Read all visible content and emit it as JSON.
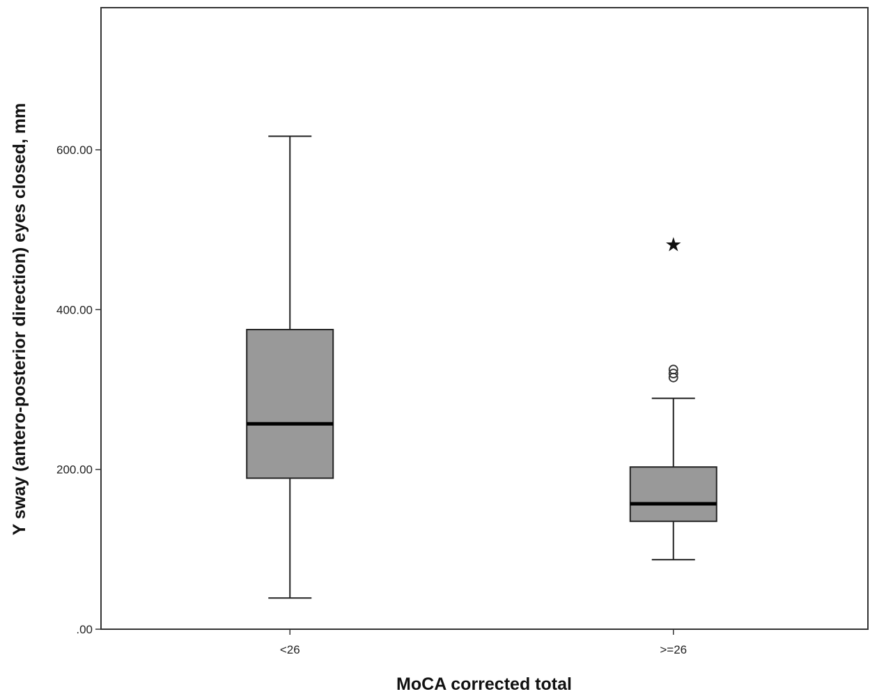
{
  "chart_data": {
    "type": "boxplot",
    "xlabel": "MoCA corrected total",
    "ylabel": "Y sway (antero-posterior direction) eyes closed, mm",
    "ylim": [
      0,
      780
    ],
    "yticks": [
      {
        "value": 0,
        "label": ".00"
      },
      {
        "value": 200,
        "label": "200.00"
      },
      {
        "value": 400,
        "label": "400.00"
      },
      {
        "value": 600,
        "label": "600.00"
      }
    ],
    "grid": false,
    "box_color": "#999999",
    "groups": [
      {
        "label": "<26",
        "min": 39,
        "q1": 189,
        "median": 257,
        "q3": 375,
        "max": 617,
        "outliers": [],
        "extremes": []
      },
      {
        "label": ">=26",
        "min": 87,
        "q1": 135,
        "median": 157,
        "q3": 203,
        "max": 289,
        "outliers": [
          315,
          320,
          325
        ],
        "extremes": [
          482
        ]
      }
    ]
  }
}
